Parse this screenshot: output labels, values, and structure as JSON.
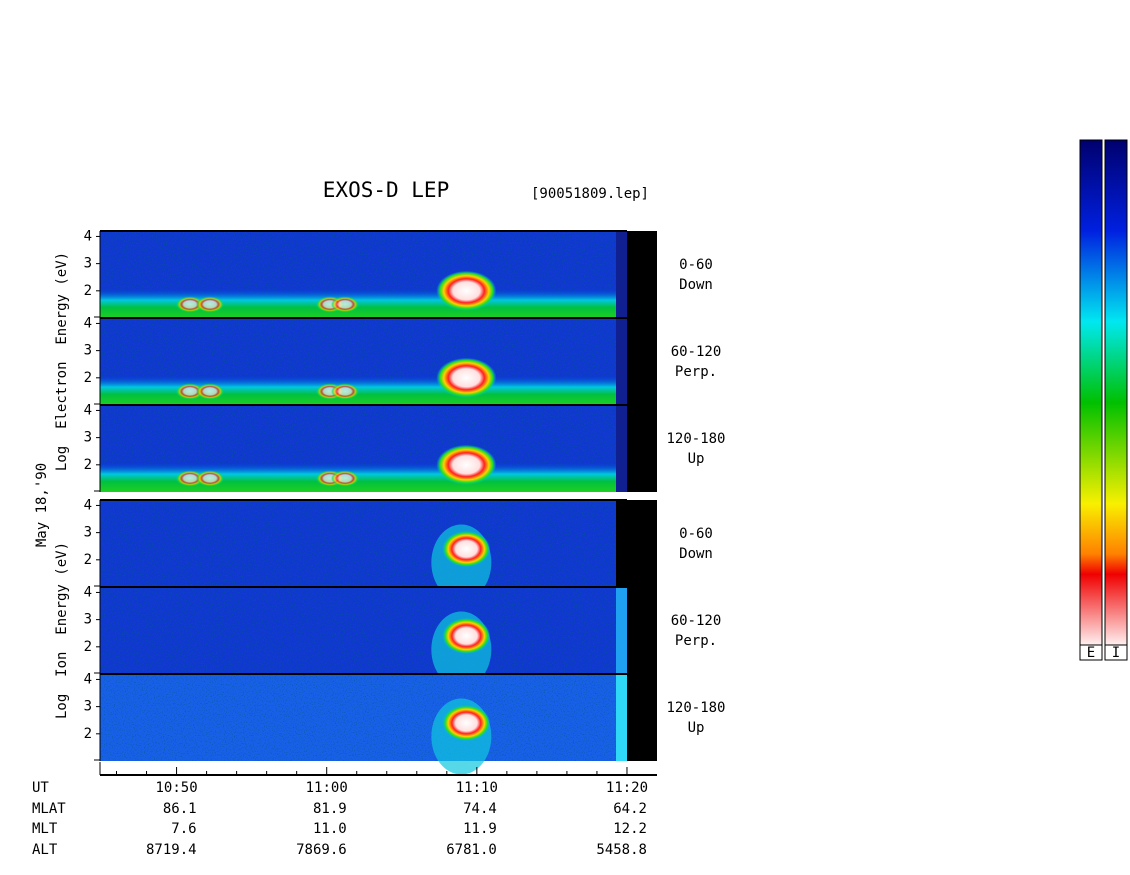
{
  "header": {
    "title": "EXOS-D LEP",
    "file": "[90051809.lep]"
  },
  "date_label": "May 18,'90",
  "panel_axis": {
    "ylim": [
      1,
      4.2
    ],
    "yticks": [
      2,
      3,
      4
    ],
    "yminorticks": [
      1
    ]
  },
  "groups": [
    {
      "species_label": "Log  Electron  Energy (eV)",
      "panels": [
        {
          "pitch": "0-60",
          "dir": "Down"
        },
        {
          "pitch": "60-120",
          "dir": "Perp."
        },
        {
          "pitch": "120-180",
          "dir": "Up"
        }
      ]
    },
    {
      "species_label": "Log  Ion  Energy (eV)",
      "panels": [
        {
          "pitch": "0-60",
          "dir": "Down"
        },
        {
          "pitch": "60-120",
          "dir": "Perp."
        },
        {
          "pitch": "120-180",
          "dir": "Up"
        }
      ]
    }
  ],
  "time_axis": {
    "xlim": [
      644.9,
      682
    ],
    "xticks": [
      {
        "value": 650,
        "label": "10:50"
      },
      {
        "value": 660,
        "label": "11:00"
      },
      {
        "value": 670,
        "label": "11:10"
      },
      {
        "value": 680,
        "label": "11:20"
      }
    ],
    "xminorticks": [
      646,
      648,
      652,
      654,
      656,
      658,
      662,
      664,
      666,
      668,
      672,
      674,
      676,
      678
    ]
  },
  "orbit": {
    "row_labels": [
      "UT",
      "MLAT",
      "MLT",
      "ALT"
    ],
    "rows": [
      [
        "86.1",
        "81.9",
        "74.4",
        "64.2"
      ],
      [
        "7.6",
        "11.0",
        "11.9",
        "12.2"
      ],
      [
        "8719.4",
        "7869.6",
        "6781.0",
        "5458.8"
      ]
    ]
  },
  "colorbar": {
    "labels": [
      "E",
      "I"
    ]
  }
}
